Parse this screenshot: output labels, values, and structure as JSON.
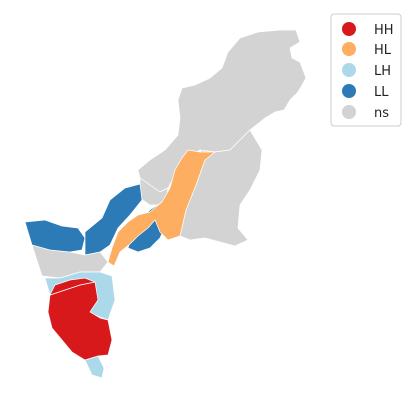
{
  "legend": {
    "items": [
      {
        "label": "HH",
        "color": "#d7191c"
      },
      {
        "label": "HL",
        "color": "#fdae61"
      },
      {
        "label": "LH",
        "color": "#abd9e9"
      },
      {
        "label": "LL",
        "color": "#2c7bb6"
      },
      {
        "label": "ns",
        "color": "#d3d3d3"
      }
    ]
  },
  "colors": {
    "HH": "#d7191c",
    "HL": "#fdae61",
    "LH": "#abd9e9",
    "LL": "#2c7bb6",
    "ns": "#d3d3d3"
  }
}
